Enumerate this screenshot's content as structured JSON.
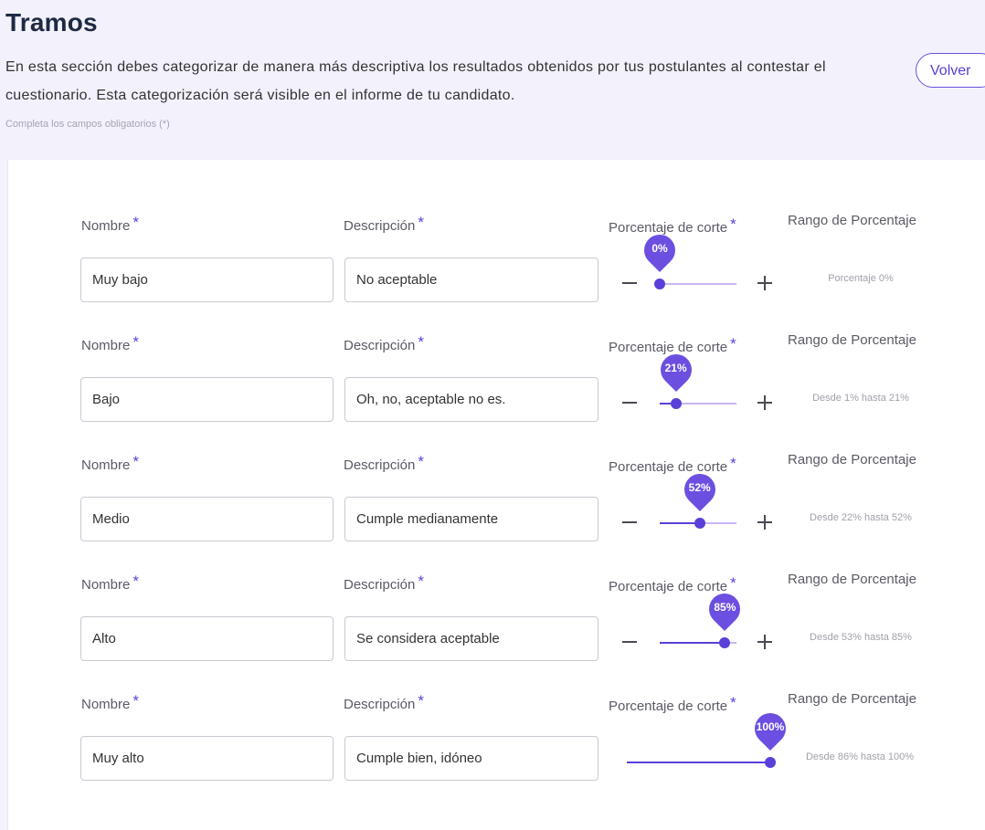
{
  "header": {
    "title": "Tramos",
    "description": "En esta sección debes categorizar de manera más descriptiva los resultados obtenidos por tus postulantes al contestar el cuestionario. Esta categorización será visible en el informe de tu candidato.",
    "required_note": "Completa los campos obligatorios (*)",
    "back_label": "Volver"
  },
  "labels": {
    "name": "Nombre",
    "description": "Descripción",
    "cutoff": "Porcentaje de corte",
    "range": "Rango de Porcentaje",
    "required_mark": "*"
  },
  "rows": [
    {
      "name": "Muy bajo",
      "description": "No aceptable",
      "cutoff": 0,
      "cutoff_label": "0%",
      "range": "Porcentaje 0%"
    },
    {
      "name": "Bajo",
      "description": "Oh, no, aceptable no es.",
      "cutoff": 21,
      "cutoff_label": "21%",
      "range": "Desde 1% hasta 21%"
    },
    {
      "name": "Medio",
      "description": "Cumple medianamente",
      "cutoff": 52,
      "cutoff_label": "52%",
      "range": "Desde 22% hasta 52%"
    },
    {
      "name": "Alto",
      "description": "Se considera aceptable",
      "cutoff": 85,
      "cutoff_label": "85%",
      "range": "Desde 53% hasta 85%"
    },
    {
      "name": "Muy alto",
      "description": "Cumple bien, idóneo",
      "cutoff": 100,
      "cutoff_label": "100%",
      "range": "Desde 86% hasta 100%"
    }
  ],
  "colors": {
    "accent": "#5b3fd9",
    "track": "#c9b6f5",
    "title": "#1e2a44"
  },
  "icons": {
    "decrease": "minus-icon",
    "increase": "plus-icon"
  }
}
